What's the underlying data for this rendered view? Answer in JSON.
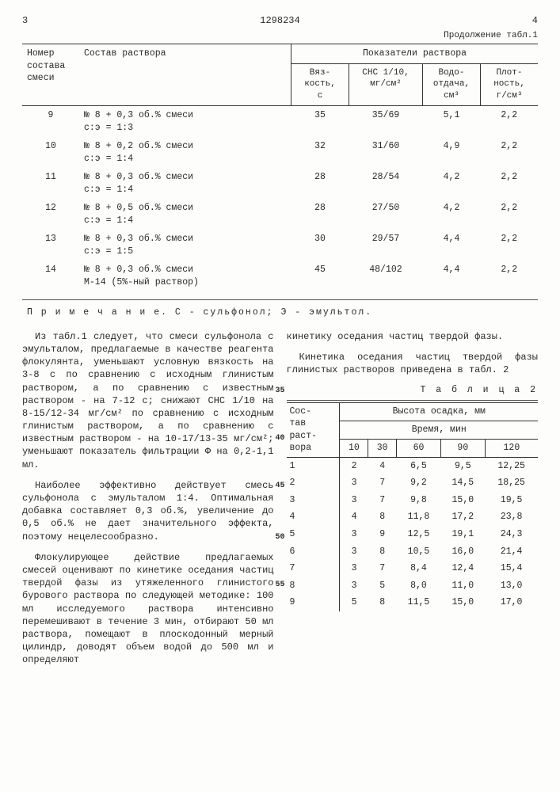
{
  "page": {
    "left_num": "3",
    "doc_num": "1298234",
    "right_num": "4",
    "cont": "Продолжение табл.1"
  },
  "t1": {
    "h_mix": "Номер состава смеси",
    "h_comp": "Состав раствора",
    "h_group": "Показатели раствора",
    "h_visc": "Вяз-\nкость,\nс",
    "h_chc": "СНС 1/10,\nмг/см²",
    "h_water": "Водо-\nотдача,\nсм³",
    "h_dens": "Плот-\nность,\nг/см³",
    "rows": [
      {
        "n": "9",
        "comp": "№ 8 + 0,3 об.% смеси\nс:э = 1:3",
        "v": "35",
        "c": "35/69",
        "w": "5,1",
        "d": "2,2"
      },
      {
        "n": "10",
        "comp": "№ 8 + 0,2 об.% смеси\nс:э = 1:4",
        "v": "32",
        "c": "31/60",
        "w": "4,9",
        "d": "2,2"
      },
      {
        "n": "11",
        "comp": "№ 8 + 0,3 об.% смеси\nс:э = 1:4",
        "v": "28",
        "c": "28/54",
        "w": "4,2",
        "d": "2,2"
      },
      {
        "n": "12",
        "comp": "№ 8 + 0,5 об.% смеси\nс:э = 1:4",
        "v": "28",
        "c": "27/50",
        "w": "4,2",
        "d": "2,2"
      },
      {
        "n": "13",
        "comp": "№ 8 + 0,3 об.% смеси\nс:э = 1:5",
        "v": "30",
        "c": "29/57",
        "w": "4,4",
        "d": "2,2"
      },
      {
        "n": "14",
        "comp": "№ 8 + 0,3 об.% смеси\nМ-14 (5%-ный раствор)",
        "v": "45",
        "c": "48/102",
        "w": "4,4",
        "d": "2,2"
      }
    ]
  },
  "note": "П р и м е ч а н и е.  С - сульфонол; Э - эмультол.",
  "left_paras": [
    "Из табл.1 следует, что смеси сульфонола с эмульталом, предлагаемые в качестве реагента флокулянта, уменьшают условную вязкость на 3-8 с по сравнению с исходным глинистым раствором, а по сравнению с известным раствором - на 7-12 с; снижают СНС 1/10 на 8-15/12-34 мг/см² по сравнению с исходным глинистым раствором, а по сравнению с известным раствором - на 10-17/13-35 мг/см²; уменьшают показатель фильтрации Ф на 0,2-1,1 мл.",
    "Наиболее эффективно действует смесь сульфонола с эмульталом 1:4. Оптимальная добавка составляет 0,3 об.%, увеличение до 0,5 об.% не дает значительного эффекта, поэтому нецелесообразно.",
    "Флокулирующее действие предлагаемых смесей оценивают по кинетике оседания частиц твердой фазы из утяжеленного глинистого бурового раствора по следующей методике: 100 мл исследуемого раствора интенсивно перемешивают в течение 3 мин, отбирают 50 мл раствора, помещают в плоскодонный мерный цилиндр, доводят объем водой до 500 мл и определяют"
  ],
  "right_intro": [
    "кинетику оседания частиц твердой фазы.",
    "Кинетика оседания частиц твердой фазы глинистых растворов приведена в табл. 2"
  ],
  "t2": {
    "title": "Т а б л и ц а  2",
    "h_comp": "Сос-\nтав\nраст-\nвора",
    "h_group": "Высота осадка, мм",
    "h_time": "Время, мин",
    "times": [
      "10",
      "30",
      "60",
      "90",
      "120"
    ],
    "rows": [
      {
        "n": "1",
        "v": [
          "2",
          "4",
          "6,5",
          "9,5",
          "12,25"
        ]
      },
      {
        "n": "2",
        "v": [
          "3",
          "7",
          "9,2",
          "14,5",
          "18,25"
        ]
      },
      {
        "n": "3",
        "v": [
          "3",
          "7",
          "9,8",
          "15,0",
          "19,5"
        ]
      },
      {
        "n": "4",
        "v": [
          "4",
          "8",
          "11,8",
          "17,2",
          "23,8"
        ]
      },
      {
        "n": "5",
        "v": [
          "3",
          "9",
          "12,5",
          "19,1",
          "24,3"
        ]
      },
      {
        "n": "6",
        "v": [
          "3",
          "8",
          "10,5",
          "16,0",
          "21,4"
        ]
      },
      {
        "n": "7",
        "v": [
          "3",
          "7",
          "8,4",
          "12,4",
          "15,4"
        ]
      },
      {
        "n": "8",
        "v": [
          "3",
          "5",
          "8,0",
          "11,0",
          "13,0"
        ]
      },
      {
        "n": "9",
        "v": [
          "5",
          "8",
          "11,5",
          "15,0",
          "17,0"
        ]
      }
    ]
  },
  "gutter": [
    "35",
    "40",
    "45",
    "50",
    "55"
  ]
}
